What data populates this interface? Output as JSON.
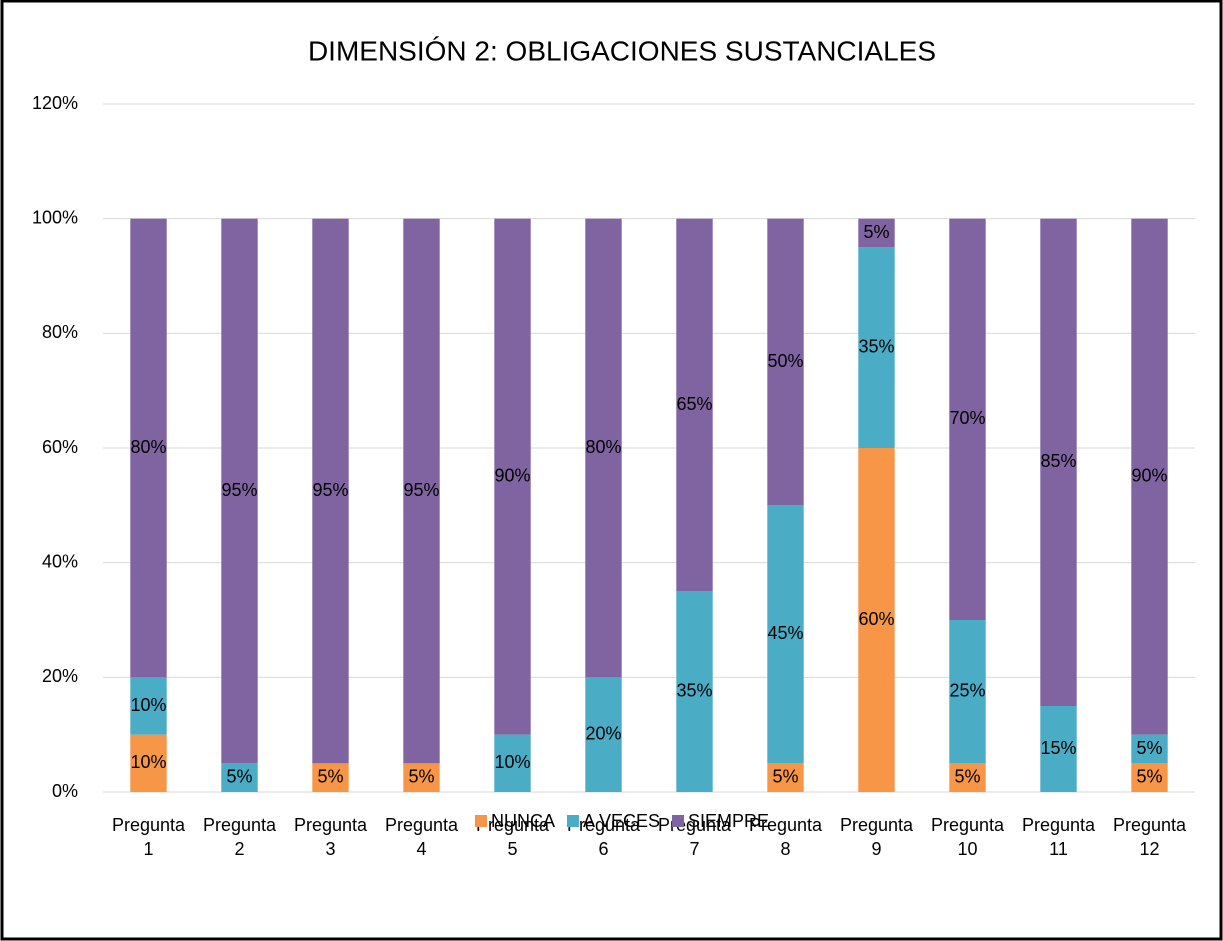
{
  "chart_data": {
    "type": "stacked_bar",
    "title": "DIMENSIÓN 2: OBLIGACIONES SUSTANCIALES",
    "categories": [
      "Pregunta 1",
      "Pregunta 2",
      "Pregunta 3",
      "Pregunta 4",
      "Pregunta 5",
      "Pregunta 6",
      "Pregunta 7",
      "Pregunta 8",
      "Pregunta 9",
      "Pregunta 10",
      "Pregunta 11",
      "Pregunta 12"
    ],
    "series": [
      {
        "name": "NUNCA",
        "color": "#F79646",
        "values": [
          10,
          0,
          5,
          5,
          0,
          0,
          0,
          5,
          60,
          5,
          0,
          5
        ],
        "value_labels": [
          "10%",
          null,
          "5%",
          "5%",
          null,
          null,
          null,
          "5%",
          "60%",
          "5%",
          null,
          "5%"
        ]
      },
      {
        "name": "A VECES",
        "color": "#4BACC6",
        "values": [
          10,
          5,
          0,
          0,
          10,
          20,
          35,
          45,
          35,
          25,
          15,
          5
        ],
        "value_labels": [
          "10%",
          "5%",
          null,
          null,
          "10%",
          "20%",
          "35%",
          "45%",
          "35%",
          "25%",
          "15%",
          "5%"
        ]
      },
      {
        "name": "SIEMPRE",
        "color": "#8064A2",
        "values": [
          80,
          95,
          95,
          95,
          90,
          80,
          65,
          50,
          5,
          70,
          85,
          90
        ],
        "value_labels": [
          "80%",
          "95%",
          "95%",
          "95%",
          "90%",
          "80%",
          "65%",
          "50%",
          "5%",
          "70%",
          "85%",
          "90%"
        ]
      }
    ],
    "ylim": [
      0,
      120
    ],
    "yticks": [
      {
        "value": 0,
        "label": "0%"
      },
      {
        "value": 20,
        "label": "20%"
      },
      {
        "value": 40,
        "label": "40%"
      },
      {
        "value": 60,
        "label": "60%"
      },
      {
        "value": 80,
        "label": "80%"
      },
      {
        "value": 100,
        "label": "100%"
      },
      {
        "value": 120,
        "label": "120%"
      }
    ],
    "grid": true,
    "legend": "bottom"
  }
}
